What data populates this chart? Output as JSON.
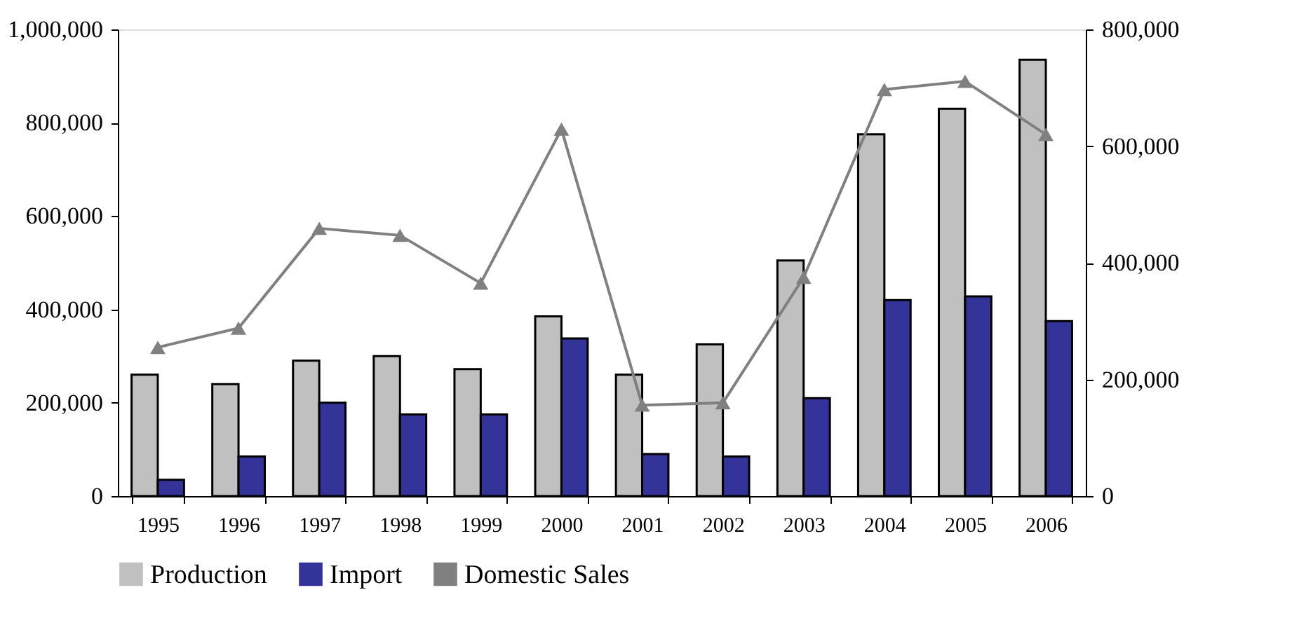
{
  "chart_data": {
    "type": "bar",
    "categories": [
      "1995",
      "1996",
      "1997",
      "1998",
      "1999",
      "2000",
      "2001",
      "2002",
      "2003",
      "2004",
      "2005",
      "2006"
    ],
    "series": [
      {
        "name": "Production",
        "color": "#c0c0c0",
        "values": [
          260000,
          240000,
          290000,
          300000,
          272000,
          385000,
          260000,
          325000,
          505000,
          775000,
          830000,
          935000
        ]
      },
      {
        "name": "Import",
        "color": "#333399",
        "values": [
          35000,
          85000,
          200000,
          175000,
          175000,
          338000,
          90000,
          85000,
          210000,
          420000,
          428000,
          375000
        ]
      },
      {
        "name": "Domestic Sales",
        "type": "line",
        "axis": "y2",
        "marker": "triangle",
        "color": "#808080",
        "values": [
          255000,
          288000,
          459000,
          447000,
          365000,
          629000,
          156000,
          160000,
          375000,
          697000,
          711000,
          620000
        ]
      }
    ],
    "ylim": [
      0,
      1000000
    ],
    "yticks": [
      0,
      {
        "value": 200000,
        "label": "200,000"
      },
      {
        "value": 400000,
        "label": "400,000"
      },
      {
        "value": 600000,
        "label": "600,000"
      },
      {
        "value": 800000,
        "label": "800,000"
      },
      {
        "value": 1000000,
        "label": "1,000,000"
      }
    ],
    "y2lim": [
      0,
      800000
    ],
    "y2ticks": [
      0,
      {
        "value": 200000,
        "label": "200,000"
      },
      {
        "value": 400000,
        "label": "400,000"
      },
      {
        "value": 600000,
        "label": "600,000"
      },
      {
        "value": 800000,
        "label": "800,000"
      }
    ],
    "grid": false,
    "legend": "bottom"
  }
}
